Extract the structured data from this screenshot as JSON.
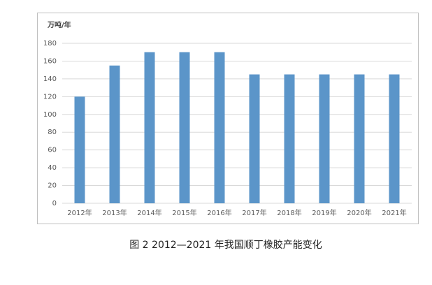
{
  "chart_data": {
    "type": "bar",
    "y_label": "万吨/年",
    "caption": "图 2  2012—2021 年我国顺丁橡胶产能变化",
    "categories": [
      "2012年",
      "2013年",
      "2014年",
      "2015年",
      "2016年",
      "2017年",
      "2018年",
      "2019年",
      "2020年",
      "2021年"
    ],
    "values": [
      120,
      155,
      170,
      170,
      170,
      145,
      145,
      145,
      145,
      145
    ],
    "color": "#5b95c9",
    "ylim": [
      0,
      180
    ],
    "yticks": [
      0,
      20,
      40,
      60,
      80,
      100,
      120,
      140,
      160,
      180
    ],
    "grid": true
  }
}
